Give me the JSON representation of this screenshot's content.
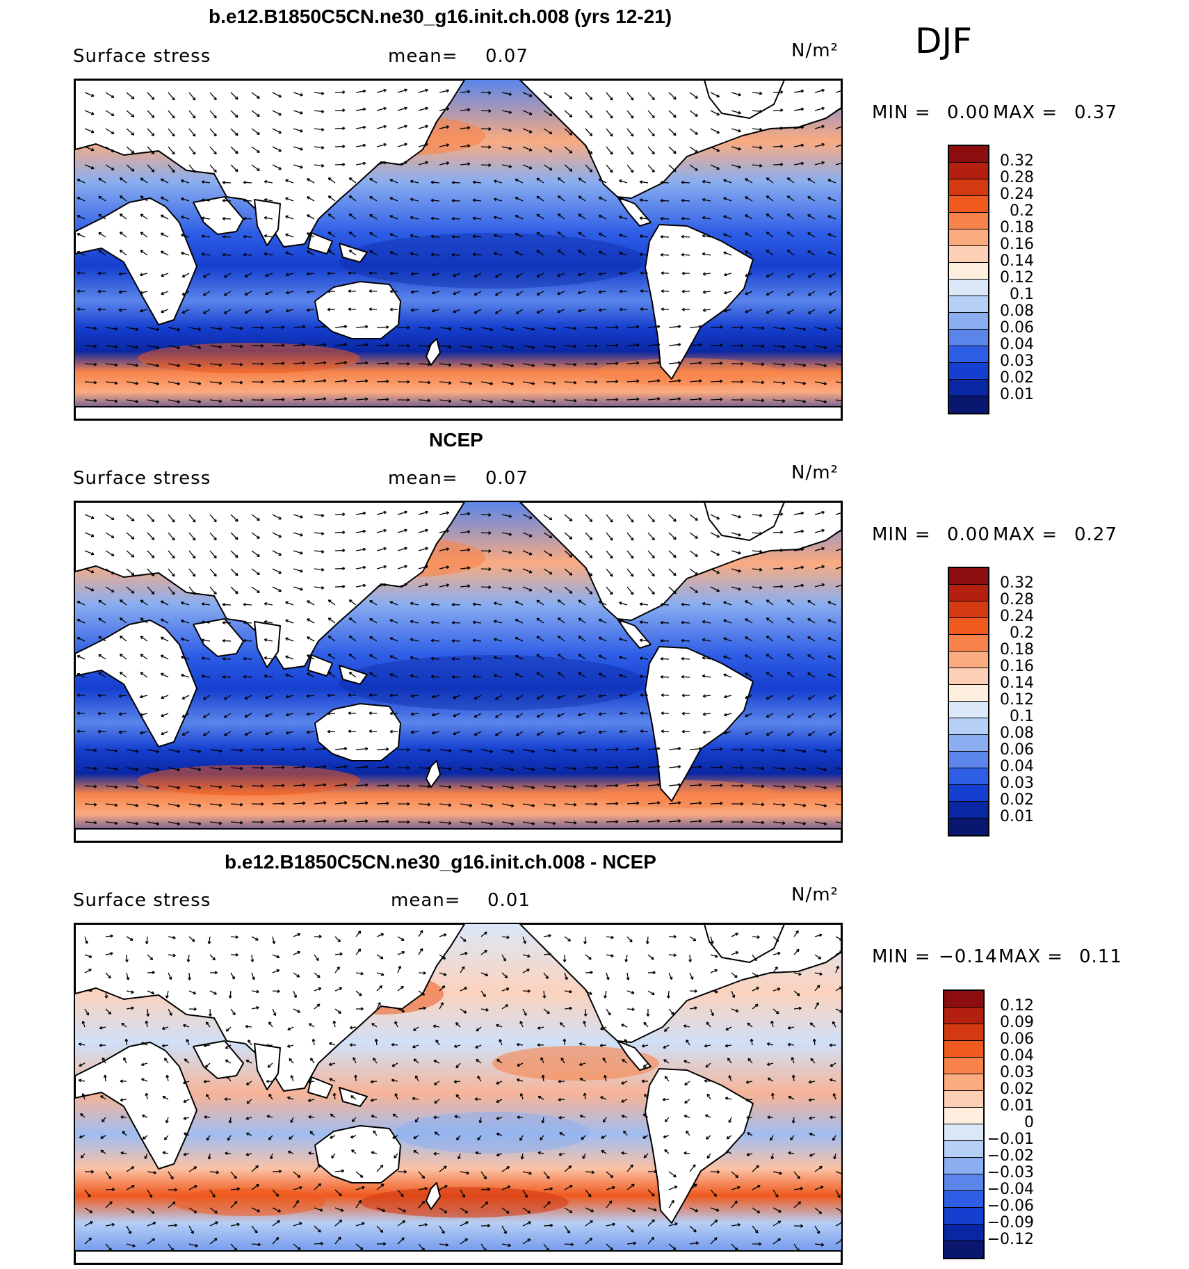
{
  "season": "DJF",
  "units": "N/m²",
  "panels": [
    {
      "title": "b.e12.B1850C5CN.ne30_g16.init.ch.008 (yrs 12-21)",
      "variable": "Surface stress",
      "mean_label": "mean=",
      "mean_value": "0.07",
      "units": "N/m²",
      "min_label": "MIN =",
      "min_value": "0.00",
      "max_label": "MAX =",
      "max_value": "0.37",
      "type": "field",
      "colorbar": {
        "labels": [
          "0.32",
          "0.28",
          "0.24",
          "0.2",
          "0.18",
          "0.16",
          "0.14",
          "0.12",
          "0.1",
          "0.08",
          "0.06",
          "0.04",
          "0.03",
          "0.02",
          "0.01"
        ],
        "colors": [
          "#8b0d0d",
          "#b3200f",
          "#d43a12",
          "#ef5a1e",
          "#f7834a",
          "#fbab80",
          "#fdcfb4",
          "#fdeede",
          "#dbe8f8",
          "#b6cff5",
          "#8aaef0",
          "#5b85ea",
          "#2f5ee6",
          "#153fcf",
          "#0a27a3",
          "#0a176e"
        ]
      }
    },
    {
      "title": "NCEP",
      "variable": "Surface stress",
      "mean_label": "mean=",
      "mean_value": "0.07",
      "units": "N/m²",
      "min_label": "MIN =",
      "min_value": "0.00",
      "max_label": "MAX =",
      "max_value": "0.27",
      "type": "field",
      "colorbar": {
        "labels": [
          "0.32",
          "0.28",
          "0.24",
          "0.2",
          "0.18",
          "0.16",
          "0.14",
          "0.12",
          "0.1",
          "0.08",
          "0.06",
          "0.04",
          "0.03",
          "0.02",
          "0.01"
        ],
        "colors": [
          "#8b0d0d",
          "#b3200f",
          "#d43a12",
          "#ef5a1e",
          "#f7834a",
          "#fbab80",
          "#fdcfb4",
          "#fdeede",
          "#dbe8f8",
          "#b6cff5",
          "#8aaef0",
          "#5b85ea",
          "#2f5ee6",
          "#153fcf",
          "#0a27a3",
          "#0a176e"
        ]
      }
    },
    {
      "title": "b.e12.B1850C5CN.ne30_g16.init.ch.008 - NCEP",
      "variable": "Surface stress",
      "mean_label": "mean=",
      "mean_value": "0.01",
      "units": "N/m²",
      "min_label": "MIN =",
      "min_value": "−0.14",
      "max_label": "MAX =",
      "max_value": "0.11",
      "type": "diff",
      "colorbar": {
        "labels": [
          "0.12",
          "0.09",
          "0.06",
          "0.04",
          "0.03",
          "0.02",
          "0.01",
          "0",
          "−0.01",
          "−0.02",
          "−0.03",
          "−0.04",
          "−0.06",
          "−0.09",
          "−0.12"
        ],
        "colors": [
          "#8b0d0d",
          "#b3200f",
          "#d43a12",
          "#ef5a1e",
          "#f7834a",
          "#fbab80",
          "#fdcfb4",
          "#fdeede",
          "#dbe8f8",
          "#b6cff5",
          "#8aaef0",
          "#5b85ea",
          "#2f5ee6",
          "#153fcf",
          "#0a27a3",
          "#0a176e"
        ]
      }
    }
  ]
}
